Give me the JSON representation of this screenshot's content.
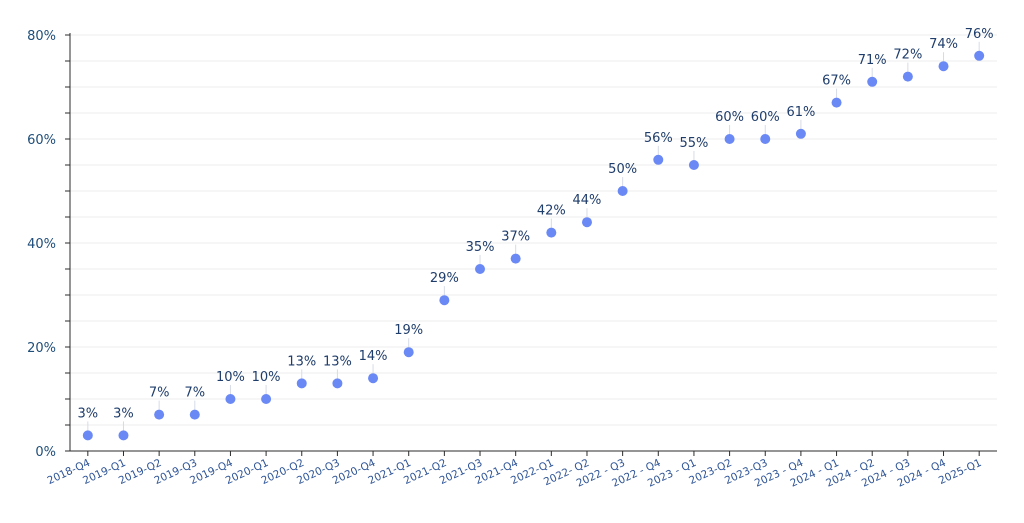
{
  "chart_data": {
    "type": "scatter",
    "title": "",
    "xlabel": "",
    "ylabel": "",
    "ylim": [
      0,
      80
    ],
    "y_ticks": [
      "0%",
      "20%",
      "40%",
      "60%",
      "80%"
    ],
    "grid": true,
    "legend": "none",
    "colors": {
      "point": "#6a89f5",
      "text": "#1f4e79"
    },
    "categories": [
      "2018-Q4",
      "2019-Q1",
      "2019-Q2",
      "2019-Q3",
      "2019-Q4",
      "2020-Q1",
      "2020-Q2",
      "2020-Q3",
      "2020-Q4",
      "2021-Q1",
      "2021-Q2",
      "2021-Q3",
      "2021-Q4",
      "2022-Q1",
      "2022- Q2",
      "2022 - Q3",
      "2022 - Q4",
      "2023 - Q1",
      "2023-Q2",
      "2023-Q3",
      "2023 - Q4",
      "2024 - Q1",
      "2024 - Q2",
      "2024 - Q3",
      "2024 - Q4",
      "2025-Q1"
    ],
    "values": [
      3,
      3,
      7,
      7,
      10,
      10,
      13,
      13,
      14,
      19,
      29,
      35,
      37,
      42,
      44,
      50,
      56,
      55,
      60,
      60,
      61,
      67,
      71,
      72,
      74,
      76
    ],
    "value_labels": [
      "3%",
      "3%",
      "7%",
      "7%",
      "10%",
      "10%",
      "13%",
      "13%",
      "14%",
      "19%",
      "29%",
      "35%",
      "37%",
      "42%",
      "44%",
      "50%",
      "56%",
      "55%",
      "60%",
      "60%",
      "61%",
      "67%",
      "71%",
      "72%",
      "74%",
      "76%"
    ]
  }
}
